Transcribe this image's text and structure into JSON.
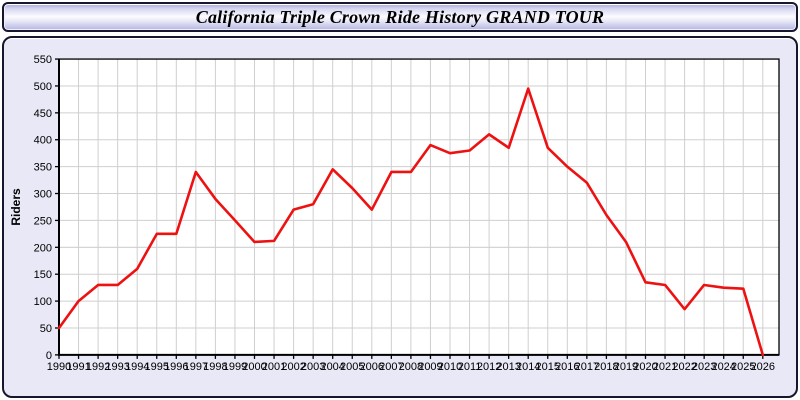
{
  "header": {
    "title": "California Triple Crown Ride History GRAND TOUR"
  },
  "colors": {
    "line": "#ee1111",
    "panel_background": "#e8e8f6",
    "plot_background": "#ffffff",
    "gridline": "#cfcfcf",
    "axis": "#000000",
    "border": "#16162e"
  },
  "chart_data": {
    "type": "line",
    "title": "California Triple Crown Ride History GRAND TOUR",
    "xlabel": "",
    "ylabel": "Riders",
    "ylim": [
      0,
      550
    ],
    "ytick_interval": 50,
    "grid": true,
    "legend_position": "none",
    "x": [
      1990,
      1991,
      1992,
      1993,
      1994,
      1995,
      1996,
      1997,
      1998,
      1999,
      2000,
      2001,
      2002,
      2003,
      2004,
      2005,
      2006,
      2007,
      2008,
      2009,
      2010,
      2011,
      2012,
      2013,
      2014,
      2015,
      2016,
      2017,
      2018,
      2019,
      2020,
      2021,
      2022,
      2023,
      2024,
      2025,
      2026
    ],
    "series": [
      {
        "name": "Riders",
        "color": "#ee1111",
        "values": [
          50,
          100,
          130,
          130,
          160,
          225,
          225,
          340,
          290,
          250,
          210,
          212,
          270,
          280,
          345,
          310,
          270,
          340,
          340,
          390,
          375,
          380,
          410,
          385,
          495,
          385,
          350,
          320,
          260,
          210,
          135,
          130,
          85,
          130,
          125,
          123,
          0
        ]
      }
    ]
  }
}
